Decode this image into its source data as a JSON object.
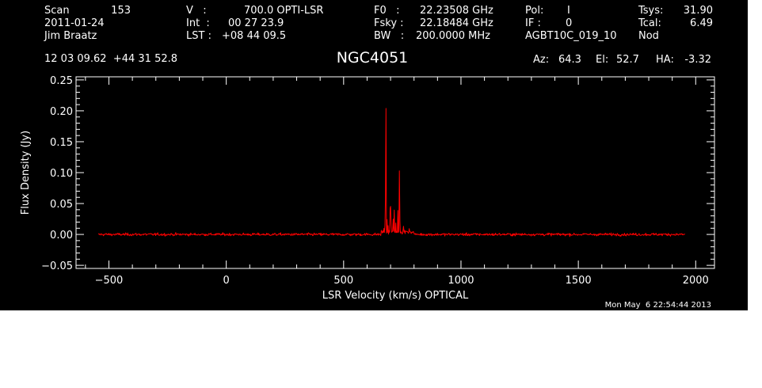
{
  "header": {
    "scan_label": "Scan",
    "scan_value": "153",
    "date": "2011-01-24",
    "observer": "Jim Braatz",
    "v_label": "V   :",
    "v_value": "700.0 OPTI-LSR",
    "int_label": "Int  :",
    "int_value": "00 27 23.9",
    "lst_label": "LST :",
    "lst_value": "+08 44 09.5",
    "f0_label": "F0   :",
    "f0_value": "22.23508 GHz",
    "fsky_label": "Fsky :",
    "fsky_value": "22.18484 GHz",
    "bw_label": "BW   :",
    "bw_value": "200.0000 MHz",
    "pol_label": "Pol:",
    "pol_value": "I",
    "if_label": "IF :",
    "if_value": "0",
    "project": "AGBT10C_019_10",
    "tsys_label": "Tsys:",
    "tsys_value": "31.90",
    "tcal_label": "Tcal:",
    "tcal_value": "6.49",
    "mode": "Nod",
    "coords": "12 03 09.62  +44 31 52.8",
    "source": "NGC4051",
    "az_label": "Az:",
    "az_value": "64.3",
    "el_label": "El:",
    "el_value": "52.7",
    "ha_label": "HA:",
    "ha_value": "-3.32"
  },
  "timestamp": "Mon May  6 22:54:44 2013",
  "colors": {
    "background": "#000000",
    "axes": "#ffffff",
    "trace": "#ff0000"
  },
  "chart_data": {
    "type": "line",
    "title": "NGC4051",
    "xlabel": "LSR Velocity (km/s) OPTICAL",
    "ylabel": "Flux Density (Jy)",
    "xlim": [
      -640,
      2080
    ],
    "ylim": [
      -0.055,
      0.255
    ],
    "xticks": [
      -500,
      0,
      500,
      1000,
      1500,
      2000
    ],
    "xtick_labels": [
      "−500",
      "0",
      "500",
      "1000",
      "1500",
      "2000"
    ],
    "yticks": [
      -0.05,
      0.0,
      0.05,
      0.1,
      0.15,
      0.2,
      0.25
    ],
    "ytick_labels": [
      "−0.05",
      "0.00",
      "0.05",
      "0.10",
      "0.15",
      "0.20",
      "0.25"
    ],
    "series": [
      {
        "x_range": [
          -545,
          1955
        ],
        "noise_rms": 0.0022,
        "baseline": 0.0,
        "features": [
          {
            "x": 672,
            "y": 0.006
          },
          {
            "x": 676,
            "y": 0.011
          },
          {
            "x": 678,
            "y": 0.05
          },
          {
            "x": 680,
            "y": 0.202
          },
          {
            "x": 681,
            "y": 0.115
          },
          {
            "x": 684,
            "y": 0.02
          },
          {
            "x": 690,
            "y": 0.009
          },
          {
            "x": 699,
            "y": 0.04
          },
          {
            "x": 703,
            "y": 0.012
          },
          {
            "x": 712,
            "y": 0.022
          },
          {
            "x": 716,
            "y": 0.035
          },
          {
            "x": 722,
            "y": 0.015
          },
          {
            "x": 731,
            "y": 0.035
          },
          {
            "x": 737,
            "y": 0.1
          },
          {
            "x": 740,
            "y": 0.02
          },
          {
            "x": 755,
            "y": 0.01
          },
          {
            "x": 780,
            "y": 0.004
          }
        ]
      }
    ]
  }
}
